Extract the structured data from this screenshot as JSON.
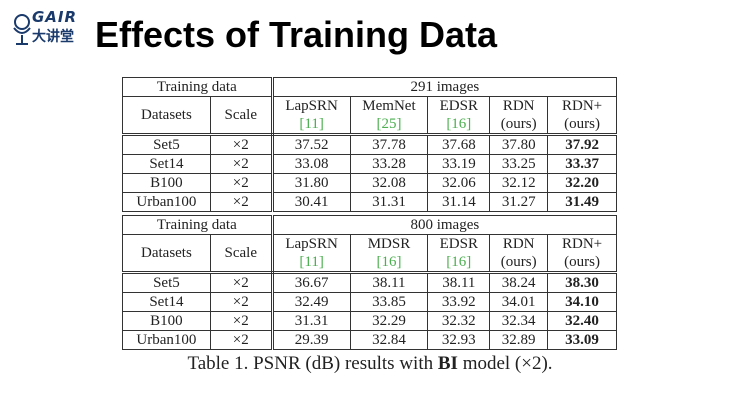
{
  "logo": {
    "brand": "GAIR",
    "subtitle": "大讲堂"
  },
  "title": "Effects of Training Data",
  "tables": [
    {
      "training_label": "Training data",
      "images": "291 images",
      "columns": [
        {
          "name": "Datasets"
        },
        {
          "name": "Scale"
        },
        {
          "name": "LapSRN",
          "note": "[11]",
          "note_color": "#4caf50"
        },
        {
          "name": "MemNet",
          "note": "[25]",
          "note_color": "#4caf50"
        },
        {
          "name": "EDSR",
          "note": "[16]",
          "note_color": "#4caf50"
        },
        {
          "name": "RDN",
          "note": "(ours)"
        },
        {
          "name": "RDN+",
          "note": "(ours)"
        }
      ],
      "rows": [
        [
          "Set5",
          "×2",
          "37.52",
          "37.78",
          "37.68",
          "37.80",
          "37.92"
        ],
        [
          "Set14",
          "×2",
          "33.08",
          "33.28",
          "33.19",
          "33.25",
          "33.37"
        ],
        [
          "B100",
          "×2",
          "31.80",
          "32.08",
          "32.06",
          "32.12",
          "32.20"
        ],
        [
          "Urban100",
          "×2",
          "30.41",
          "31.31",
          "31.14",
          "31.27",
          "31.49"
        ]
      ]
    },
    {
      "training_label": "Training data",
      "images": "800 images",
      "columns": [
        {
          "name": "Datasets"
        },
        {
          "name": "Scale"
        },
        {
          "name": "LapSRN",
          "note": "[11]",
          "note_color": "#4caf50"
        },
        {
          "name": "MDSR",
          "note": "[16]",
          "note_color": "#4caf50"
        },
        {
          "name": "EDSR",
          "note": "[16]",
          "note_color": "#4caf50"
        },
        {
          "name": "RDN",
          "note": "(ours)"
        },
        {
          "name": "RDN+",
          "note": "(ours)"
        }
      ],
      "rows": [
        [
          "Set5",
          "×2",
          "36.67",
          "38.11",
          "38.11",
          "38.24",
          "38.30"
        ],
        [
          "Set14",
          "×2",
          "32.49",
          "33.85",
          "33.92",
          "34.01",
          "34.10"
        ],
        [
          "B100",
          "×2",
          "31.31",
          "32.29",
          "32.32",
          "32.34",
          "32.40"
        ],
        [
          "Urban100",
          "×2",
          "29.39",
          "32.84",
          "32.93",
          "32.89",
          "33.09"
        ]
      ]
    }
  ],
  "caption": {
    "prefix": "Table 1. PSNR (dB) results with ",
    "bold": "BI",
    "suffix": " model (×2)."
  }
}
